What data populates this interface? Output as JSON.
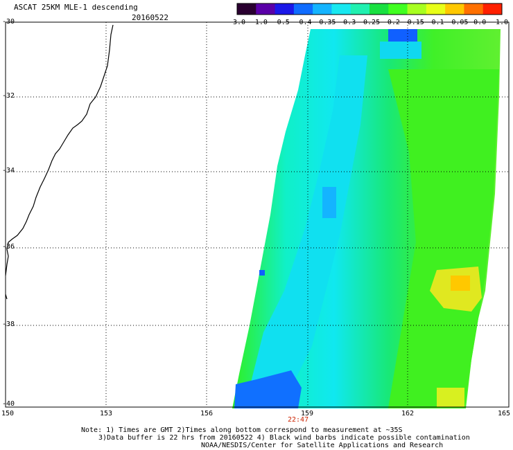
{
  "header": {
    "title": "ASCAT 25KM MLE-1 descending",
    "date": "20160522"
  },
  "colorbar": {
    "labels": [
      "-3.0",
      "-1.0",
      "-0.5",
      "-0.4",
      "-0.35",
      "-0.3",
      "-0.25",
      "-0.2",
      "-0.15",
      "-0.1",
      "-0.05",
      "0.0",
      "1.0"
    ],
    "colors": [
      "#2a0030",
      "#5a00a8",
      "#1b18e8",
      "#0f6cff",
      "#14b4ff",
      "#18e8f0",
      "#20f0b0",
      "#18e040",
      "#40ff20",
      "#a8ff20",
      "#e8ff18",
      "#ffc800",
      "#ff7000",
      "#ff2000"
    ]
  },
  "axes": {
    "lat_labels": [
      "-30",
      "-32",
      "-34",
      "-36",
      "-38",
      "-40"
    ],
    "lon_labels": [
      "150",
      "153",
      "156",
      "159",
      "162",
      "165"
    ]
  },
  "time_label": "22:47",
  "notes": [
    "Note: 1) Times are GMT 2)Times along bottom correspond to measurement at ~35S",
    "3)Data buffer is 22 hrs from 20160522 4) Black wind barbs indicate possible contamination",
    "NOAA/NESDIS/Center for Satellite Applications and Research"
  ]
}
